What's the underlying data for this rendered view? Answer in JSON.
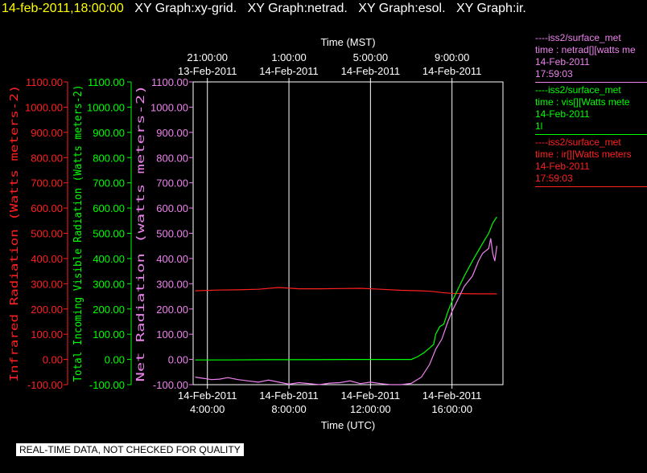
{
  "header": {
    "datetime": "14-feb-2011,18:00:00",
    "graphs": [
      "XY Graph:xy-grid.",
      "XY Graph:netrad.",
      "XY Graph:esol.",
      "XY Graph:ir."
    ]
  },
  "colors": {
    "background": "#000000",
    "datetime": "#ffff00",
    "header": "#ffffff",
    "infrared": "#ff2020",
    "visible": "#00ff00",
    "net": "#ee82ee",
    "grid": "#ffffff",
    "notice_bg": "#ffffff",
    "notice_text": "#000000"
  },
  "legend": [
    {
      "lines": [
        "----iss2/surface_met",
        "time : netrad[][watts me",
        "14-Feb-2011",
        "17:59:03"
      ],
      "color": "#ee82ee"
    },
    {
      "lines": [
        "----iss2/surface_met",
        "time : vis[][Watts mete",
        "14-Feb-2011",
        "1l"
      ],
      "color": "#00ff00"
    },
    {
      "lines": [
        "----iss2/surface_met",
        "time : ir[][Watts meters",
        "14-Feb-2011",
        "17:59:03"
      ],
      "color": "#ff2020"
    }
  ],
  "notice": "REAL-TIME DATA, NOT CHECKED FOR QUALITY",
  "chart_data": {
    "type": "line",
    "x_unit": "hours (UTC) from 14-Feb-2011 0:00",
    "xlim": [
      3.3,
      18.5
    ],
    "top_axis": {
      "label": "Time (MST)",
      "ticks": [
        {
          "x": 4,
          "time": "21:00:00",
          "date": "13-Feb-2011"
        },
        {
          "x": 8,
          "time": "1:00:00",
          "date": "14-Feb-2011"
        },
        {
          "x": 12,
          "time": "5:00:00",
          "date": "14-Feb-2011"
        },
        {
          "x": 16,
          "time": "9:00:00",
          "date": "14-Feb-2011"
        }
      ]
    },
    "bottom_axis": {
      "label": "Time (UTC)",
      "ticks": [
        {
          "x": 4,
          "date": "14-Feb-2011",
          "time": "4:00:00"
        },
        {
          "x": 8,
          "date": "14-Feb-2011",
          "time": "8:00:00"
        },
        {
          "x": 12,
          "date": "14-Feb-2011",
          "time": "12:00:00"
        },
        {
          "x": 16,
          "date": "14-Feb-2011",
          "time": "16:00:00"
        }
      ]
    },
    "y_axes": [
      {
        "key": "infrared",
        "label": "Infrared Radiation (Watts meters-2)",
        "ylim": [
          -100,
          1100
        ],
        "ticks": [
          "-100.00",
          "0.00",
          "100.00",
          "200.00",
          "300.00",
          "400.00",
          "500.00",
          "600.00",
          "700.00",
          "800.00",
          "900.00",
          "1000.00",
          "1100.00"
        ]
      },
      {
        "key": "visible",
        "label": "Total Incoming Visible Radiation (Watts meters-2)",
        "ylim": [
          -100,
          1100
        ],
        "ticks": [
          "-100.00",
          "0.00",
          "100.00",
          "200.00",
          "300.00",
          "400.00",
          "500.00",
          "600.00",
          "700.00",
          "800.00",
          "900.00",
          "1000.00",
          "1100.00"
        ]
      },
      {
        "key": "net",
        "label": "Net Radiation (watts meters-2)",
        "ylim": [
          -100,
          1100
        ],
        "ticks": [
          "-100.00",
          "0.00",
          "100.00",
          "200.00",
          "300.00",
          "400.00",
          "500.00",
          "600.00",
          "700.00",
          "800.00",
          "900.00",
          "1000.00",
          "1100.00"
        ]
      }
    ],
    "series": [
      {
        "key": "infrared",
        "x": [
          3.4,
          4.5,
          5.5,
          6.5,
          7.5,
          8.5,
          9.5,
          10.5,
          11.5,
          12.5,
          13.5,
          14.5,
          15.0,
          15.5,
          16.0,
          16.5,
          17.0,
          17.5,
          18.0,
          18.2
        ],
        "y": [
          272,
          275,
          276,
          278,
          285,
          280,
          280,
          281,
          282,
          278,
          274,
          272,
          270,
          265,
          262,
          261,
          260,
          260,
          260,
          260
        ]
      },
      {
        "key": "visible",
        "x": [
          3.4,
          5,
          7,
          9,
          11,
          12,
          13,
          14,
          14.3,
          14.6,
          14.9,
          15.1,
          15.2,
          15.4,
          15.6,
          15.8,
          16.0,
          16.3,
          16.6,
          17.0,
          17.5,
          17.8,
          18.0,
          18.2
        ],
        "y": [
          -2,
          -2,
          -1,
          -1,
          0,
          0,
          0,
          0,
          10,
          25,
          45,
          60,
          100,
          130,
          140,
          190,
          230,
          280,
          330,
          390,
          460,
          500,
          540,
          565
        ]
      },
      {
        "key": "net",
        "x": [
          3.4,
          3.8,
          4.2,
          4.6,
          5.0,
          5.5,
          6.0,
          6.5,
          7.0,
          7.5,
          8.0,
          8.5,
          9.0,
          9.5,
          10.0,
          10.5,
          11.0,
          11.5,
          12.0,
          12.5,
          13.0,
          13.5,
          14.0,
          14.5,
          14.9,
          15.2,
          15.5,
          15.8,
          16.0,
          16.3,
          16.6,
          17.0,
          17.3,
          17.5,
          17.8,
          17.9,
          18.0,
          18.1,
          18.2
        ],
        "y": [
          -70,
          -75,
          -80,
          -78,
          -72,
          -80,
          -85,
          -90,
          -82,
          -90,
          -98,
          -92,
          -96,
          -100,
          -94,
          -92,
          -85,
          -96,
          -90,
          -96,
          -100,
          -100,
          -95,
          -70,
          -20,
          40,
          80,
          150,
          190,
          240,
          290,
          330,
          390,
          420,
          440,
          480,
          420,
          390,
          450
        ]
      }
    ]
  }
}
